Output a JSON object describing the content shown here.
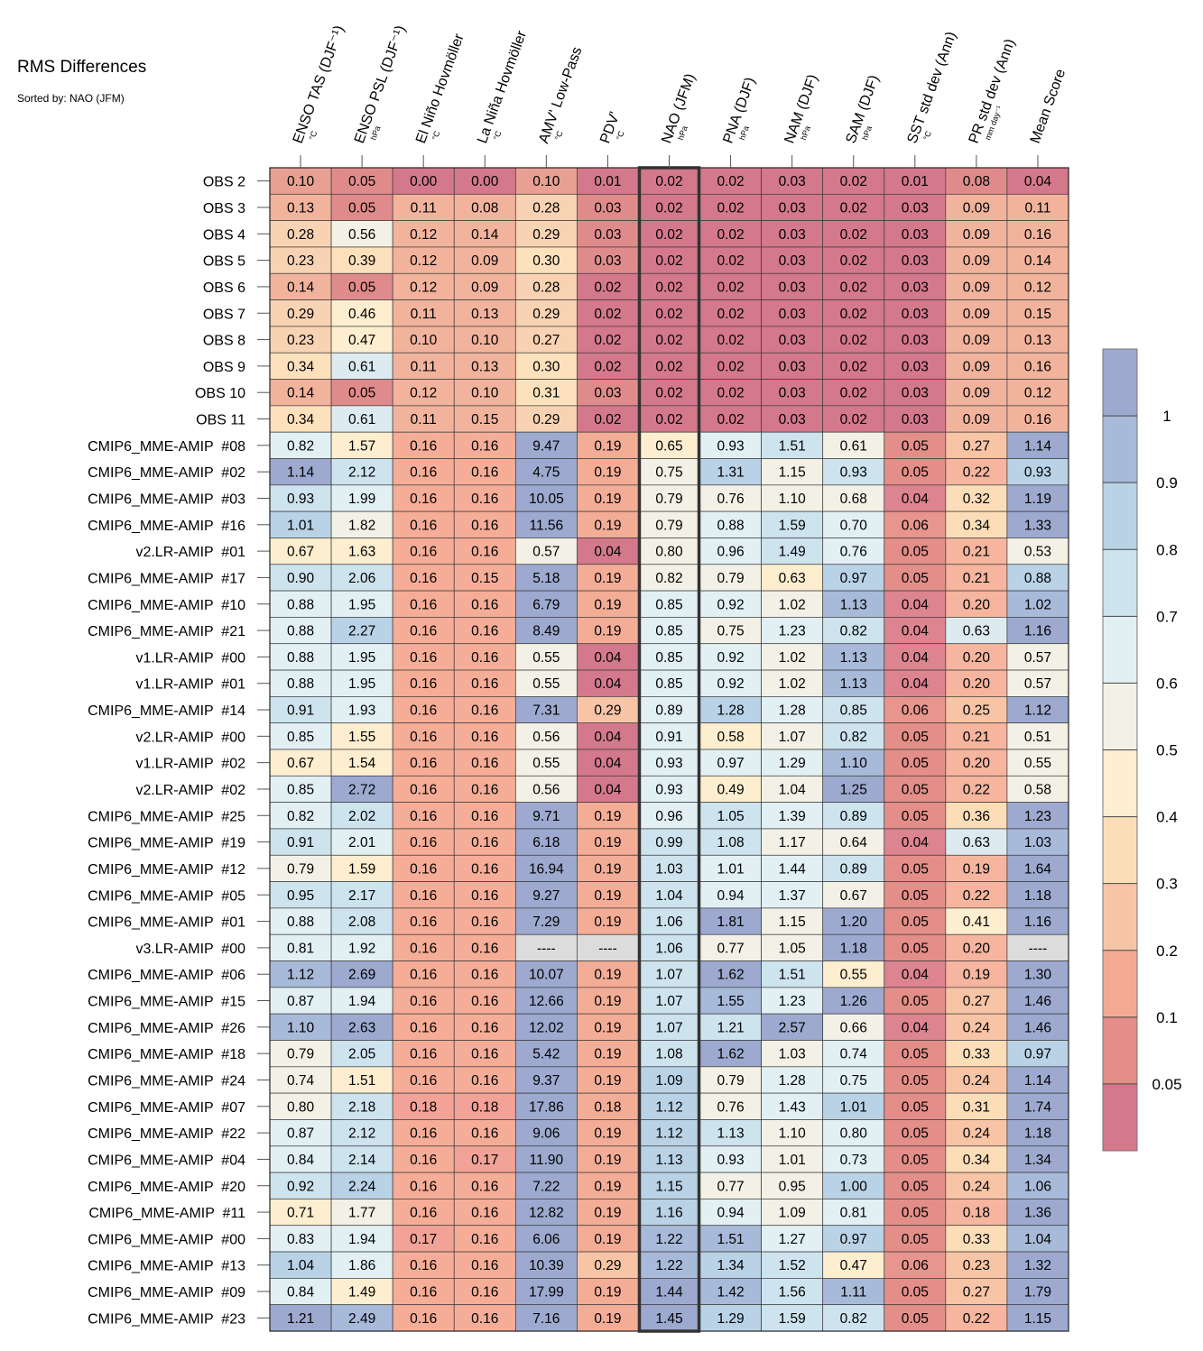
{
  "chart_data": {
    "type": "heatmap",
    "title": "RMS Differences",
    "subtitle": "Sorted by: NAO (JFM)",
    "columns": [
      {
        "label": "ENSO TAS (DJF⁻¹)",
        "unit": "°C"
      },
      {
        "label": "ENSO PSL (DJF⁻¹)",
        "unit": "hPa"
      },
      {
        "label": "El Niño Hovmöller",
        "unit": "°C"
      },
      {
        "label": "La Niña Hovmöller",
        "unit": "°C"
      },
      {
        "label": "AMV' Low-Pass",
        "unit": "°C"
      },
      {
        "label": "PDV'",
        "unit": "°C"
      },
      {
        "label": "NAO (JFM)",
        "unit": "hPa"
      },
      {
        "label": "PNA (DJF)",
        "unit": "hPa"
      },
      {
        "label": "NAM (DJF)",
        "unit": "hPa"
      },
      {
        "label": "SAM (DJF)",
        "unit": "hPa"
      },
      {
        "label": "SST std dev (Ann)",
        "unit": "°C"
      },
      {
        "label": "PR std dev (Ann)",
        "unit": "mm day⁻¹"
      },
      {
        "label": "Mean Score",
        "unit": ""
      }
    ],
    "highlight_column": "NAO (JFM)",
    "rows": [
      {
        "label": "OBS 2",
        "values": [
          "0.10",
          "0.05",
          "0.00",
          "0.00",
          "0.10",
          "0.01",
          "0.02",
          "0.02",
          "0.03",
          "0.02",
          "0.01",
          "0.08",
          "0.04"
        ]
      },
      {
        "label": "OBS 3",
        "values": [
          "0.13",
          "0.05",
          "0.11",
          "0.08",
          "0.28",
          "0.03",
          "0.02",
          "0.02",
          "0.03",
          "0.02",
          "0.03",
          "0.09",
          "0.11"
        ]
      },
      {
        "label": "OBS 4",
        "values": [
          "0.28",
          "0.56",
          "0.12",
          "0.14",
          "0.29",
          "0.03",
          "0.02",
          "0.02",
          "0.03",
          "0.02",
          "0.03",
          "0.09",
          "0.16"
        ]
      },
      {
        "label": "OBS 5",
        "values": [
          "0.23",
          "0.39",
          "0.12",
          "0.09",
          "0.30",
          "0.03",
          "0.02",
          "0.02",
          "0.03",
          "0.02",
          "0.03",
          "0.09",
          "0.14"
        ]
      },
      {
        "label": "OBS 6",
        "values": [
          "0.14",
          "0.05",
          "0.12",
          "0.09",
          "0.28",
          "0.02",
          "0.02",
          "0.02",
          "0.03",
          "0.02",
          "0.03",
          "0.09",
          "0.12"
        ]
      },
      {
        "label": "OBS 7",
        "values": [
          "0.29",
          "0.46",
          "0.11",
          "0.13",
          "0.29",
          "0.02",
          "0.02",
          "0.02",
          "0.03",
          "0.02",
          "0.03",
          "0.09",
          "0.15"
        ]
      },
      {
        "label": "OBS 8",
        "values": [
          "0.23",
          "0.47",
          "0.10",
          "0.10",
          "0.27",
          "0.02",
          "0.02",
          "0.02",
          "0.03",
          "0.02",
          "0.03",
          "0.09",
          "0.13"
        ]
      },
      {
        "label": "OBS 9",
        "values": [
          "0.34",
          "0.61",
          "0.11",
          "0.13",
          "0.30",
          "0.02",
          "0.02",
          "0.02",
          "0.03",
          "0.02",
          "0.03",
          "0.09",
          "0.16"
        ]
      },
      {
        "label": "OBS 10",
        "values": [
          "0.14",
          "0.05",
          "0.12",
          "0.10",
          "0.31",
          "0.03",
          "0.02",
          "0.02",
          "0.03",
          "0.02",
          "0.03",
          "0.09",
          "0.12"
        ]
      },
      {
        "label": "OBS 11",
        "values": [
          "0.34",
          "0.61",
          "0.11",
          "0.15",
          "0.29",
          "0.02",
          "0.02",
          "0.02",
          "0.03",
          "0.02",
          "0.03",
          "0.09",
          "0.16"
        ]
      },
      {
        "label": "CMIP6_MME-AMIP  #08",
        "values": [
          "0.82",
          "1.57",
          "0.16",
          "0.16",
          "9.47",
          "0.19",
          "0.65",
          "0.93",
          "1.51",
          "0.61",
          "0.05",
          "0.27",
          "1.14"
        ]
      },
      {
        "label": "CMIP6_MME-AMIP  #02",
        "values": [
          "1.14",
          "2.12",
          "0.16",
          "0.16",
          "4.75",
          "0.19",
          "0.75",
          "1.31",
          "1.15",
          "0.93",
          "0.05",
          "0.22",
          "0.93"
        ]
      },
      {
        "label": "CMIP6_MME-AMIP  #03",
        "values": [
          "0.93",
          "1.99",
          "0.16",
          "0.16",
          "10.05",
          "0.19",
          "0.79",
          "0.76",
          "1.10",
          "0.68",
          "0.04",
          "0.32",
          "1.19"
        ]
      },
      {
        "label": "CMIP6_MME-AMIP  #16",
        "values": [
          "1.01",
          "1.82",
          "0.16",
          "0.16",
          "11.56",
          "0.19",
          "0.79",
          "0.88",
          "1.59",
          "0.70",
          "0.06",
          "0.34",
          "1.33"
        ]
      },
      {
        "label": "v2.LR-AMIP  #01",
        "values": [
          "0.67",
          "1.63",
          "0.16",
          "0.16",
          "0.57",
          "0.04",
          "0.80",
          "0.96",
          "1.49",
          "0.76",
          "0.05",
          "0.21",
          "0.53"
        ]
      },
      {
        "label": "CMIP6_MME-AMIP  #17",
        "values": [
          "0.90",
          "2.06",
          "0.16",
          "0.15",
          "5.18",
          "0.19",
          "0.82",
          "0.79",
          "0.63",
          "0.97",
          "0.05",
          "0.21",
          "0.88"
        ]
      },
      {
        "label": "CMIP6_MME-AMIP  #10",
        "values": [
          "0.88",
          "1.95",
          "0.16",
          "0.16",
          "6.79",
          "0.19",
          "0.85",
          "0.92",
          "1.02",
          "1.13",
          "0.04",
          "0.20",
          "1.02"
        ]
      },
      {
        "label": "CMIP6_MME-AMIP  #21",
        "values": [
          "0.88",
          "2.27",
          "0.16",
          "0.16",
          "8.49",
          "0.19",
          "0.85",
          "0.75",
          "1.23",
          "0.82",
          "0.04",
          "0.63",
          "1.16"
        ]
      },
      {
        "label": "v1.LR-AMIP  #00",
        "values": [
          "0.88",
          "1.95",
          "0.16",
          "0.16",
          "0.55",
          "0.04",
          "0.85",
          "0.92",
          "1.02",
          "1.13",
          "0.04",
          "0.20",
          "0.57"
        ]
      },
      {
        "label": "v1.LR-AMIP  #01",
        "values": [
          "0.88",
          "1.95",
          "0.16",
          "0.16",
          "0.55",
          "0.04",
          "0.85",
          "0.92",
          "1.02",
          "1.13",
          "0.04",
          "0.20",
          "0.57"
        ]
      },
      {
        "label": "CMIP6_MME-AMIP  #14",
        "values": [
          "0.91",
          "1.93",
          "0.16",
          "0.16",
          "7.31",
          "0.29",
          "0.89",
          "1.28",
          "1.28",
          "0.85",
          "0.06",
          "0.25",
          "1.12"
        ]
      },
      {
        "label": "v2.LR-AMIP  #00",
        "values": [
          "0.85",
          "1.55",
          "0.16",
          "0.16",
          "0.56",
          "0.04",
          "0.91",
          "0.58",
          "1.07",
          "0.82",
          "0.05",
          "0.21",
          "0.51"
        ]
      },
      {
        "label": "v1.LR-AMIP  #02",
        "values": [
          "0.67",
          "1.54",
          "0.16",
          "0.16",
          "0.55",
          "0.04",
          "0.93",
          "0.97",
          "1.29",
          "1.10",
          "0.05",
          "0.20",
          "0.55"
        ]
      },
      {
        "label": "v2.LR-AMIP  #02",
        "values": [
          "0.85",
          "2.72",
          "0.16",
          "0.16",
          "0.56",
          "0.04",
          "0.93",
          "0.49",
          "1.04",
          "1.25",
          "0.05",
          "0.22",
          "0.58"
        ]
      },
      {
        "label": "CMIP6_MME-AMIP  #25",
        "values": [
          "0.82",
          "2.02",
          "0.16",
          "0.16",
          "9.71",
          "0.19",
          "0.96",
          "1.05",
          "1.39",
          "0.89",
          "0.05",
          "0.36",
          "1.23"
        ]
      },
      {
        "label": "CMIP6_MME-AMIP  #19",
        "values": [
          "0.91",
          "2.01",
          "0.16",
          "0.16",
          "6.18",
          "0.19",
          "0.99",
          "1.08",
          "1.17",
          "0.64",
          "0.04",
          "0.63",
          "1.03"
        ]
      },
      {
        "label": "CMIP6_MME-AMIP  #12",
        "values": [
          "0.79",
          "1.59",
          "0.16",
          "0.16",
          "16.94",
          "0.19",
          "1.03",
          "1.01",
          "1.44",
          "0.89",
          "0.05",
          "0.19",
          "1.64"
        ]
      },
      {
        "label": "CMIP6_MME-AMIP  #05",
        "values": [
          "0.95",
          "2.17",
          "0.16",
          "0.16",
          "9.27",
          "0.19",
          "1.04",
          "0.94",
          "1.37",
          "0.67",
          "0.05",
          "0.22",
          "1.18"
        ]
      },
      {
        "label": "CMIP6_MME-AMIP  #01",
        "values": [
          "0.88",
          "2.08",
          "0.16",
          "0.16",
          "7.29",
          "0.19",
          "1.06",
          "1.81",
          "1.15",
          "1.20",
          "0.05",
          "0.41",
          "1.16"
        ]
      },
      {
        "label": "v3.LR-AMIP  #00",
        "values": [
          "0.81",
          "1.92",
          "0.16",
          "0.16",
          "----",
          "----",
          "1.06",
          "0.77",
          "1.05",
          "1.18",
          "0.05",
          "0.20",
          "----"
        ]
      },
      {
        "label": "CMIP6_MME-AMIP  #06",
        "values": [
          "1.12",
          "2.69",
          "0.16",
          "0.16",
          "10.07",
          "0.19",
          "1.07",
          "1.62",
          "1.51",
          "0.55",
          "0.04",
          "0.19",
          "1.30"
        ]
      },
      {
        "label": "CMIP6_MME-AMIP  #15",
        "values": [
          "0.87",
          "1.94",
          "0.16",
          "0.16",
          "12.66",
          "0.19",
          "1.07",
          "1.55",
          "1.23",
          "1.26",
          "0.05",
          "0.27",
          "1.46"
        ]
      },
      {
        "label": "CMIP6_MME-AMIP  #26",
        "values": [
          "1.10",
          "2.63",
          "0.16",
          "0.16",
          "12.02",
          "0.19",
          "1.07",
          "1.21",
          "2.57",
          "0.66",
          "0.04",
          "0.24",
          "1.46"
        ]
      },
      {
        "label": "CMIP6_MME-AMIP  #18",
        "values": [
          "0.79",
          "2.05",
          "0.16",
          "0.16",
          "5.42",
          "0.19",
          "1.08",
          "1.62",
          "1.03",
          "0.74",
          "0.05",
          "0.33",
          "0.97"
        ]
      },
      {
        "label": "CMIP6_MME-AMIP  #24",
        "values": [
          "0.74",
          "1.51",
          "0.16",
          "0.16",
          "9.37",
          "0.19",
          "1.09",
          "0.79",
          "1.28",
          "0.75",
          "0.05",
          "0.24",
          "1.14"
        ]
      },
      {
        "label": "CMIP6_MME-AMIP  #07",
        "values": [
          "0.80",
          "2.18",
          "0.18",
          "0.18",
          "17.86",
          "0.18",
          "1.12",
          "0.76",
          "1.43",
          "1.01",
          "0.05",
          "0.31",
          "1.74"
        ]
      },
      {
        "label": "CMIP6_MME-AMIP  #22",
        "values": [
          "0.87",
          "2.12",
          "0.16",
          "0.16",
          "9.06",
          "0.19",
          "1.12",
          "1.13",
          "1.10",
          "0.80",
          "0.05",
          "0.24",
          "1.18"
        ]
      },
      {
        "label": "CMIP6_MME-AMIP  #04",
        "values": [
          "0.84",
          "2.14",
          "0.16",
          "0.17",
          "11.90",
          "0.19",
          "1.13",
          "0.93",
          "1.01",
          "0.73",
          "0.05",
          "0.34",
          "1.34"
        ]
      },
      {
        "label": "CMIP6_MME-AMIP  #20",
        "values": [
          "0.92",
          "2.24",
          "0.16",
          "0.16",
          "7.22",
          "0.19",
          "1.15",
          "0.77",
          "0.95",
          "1.00",
          "0.05",
          "0.24",
          "1.06"
        ]
      },
      {
        "label": "CMIP6_MME-AMIP  #11",
        "values": [
          "0.71",
          "1.77",
          "0.16",
          "0.16",
          "12.82",
          "0.19",
          "1.16",
          "0.94",
          "1.09",
          "0.81",
          "0.05",
          "0.18",
          "1.36"
        ]
      },
      {
        "label": "CMIP6_MME-AMIP  #00",
        "values": [
          "0.83",
          "1.94",
          "0.17",
          "0.16",
          "6.06",
          "0.19",
          "1.22",
          "1.51",
          "1.27",
          "0.97",
          "0.05",
          "0.33",
          "1.04"
        ]
      },
      {
        "label": "CMIP6_MME-AMIP  #13",
        "values": [
          "1.04",
          "1.86",
          "0.16",
          "0.16",
          "10.39",
          "0.29",
          "1.22",
          "1.34",
          "1.52",
          "0.47",
          "0.06",
          "0.23",
          "1.32"
        ]
      },
      {
        "label": "CMIP6_MME-AMIP  #09",
        "values": [
          "0.84",
          "1.49",
          "0.16",
          "0.16",
          "17.99",
          "0.19",
          "1.44",
          "1.42",
          "1.56",
          "1.11",
          "0.05",
          "0.27",
          "1.79"
        ]
      },
      {
        "label": "CMIP6_MME-AMIP  #23",
        "values": [
          "1.21",
          "2.49",
          "0.16",
          "0.16",
          "7.16",
          "0.19",
          "1.45",
          "1.29",
          "1.59",
          "0.82",
          "0.05",
          "0.22",
          "1.15"
        ]
      }
    ],
    "cell_colors": [
      [
        "#E8A092",
        "#E08B8B",
        "#D4788C",
        "#D4788C",
        "#E8A092",
        "#D4788C",
        "#D4788C",
        "#D4788C",
        "#D4788C",
        "#D4788C",
        "#D4788C",
        "#E08B8B",
        "#D4788C"
      ],
      [
        "#F2B39D",
        "#E08B8B",
        "#F2B39D",
        "#F2B39D",
        "#F7D3B3",
        "#E08B8B",
        "#D4788C",
        "#D4788C",
        "#D4788C",
        "#D4788C",
        "#D4788C",
        "#F2B39D",
        "#F2B39D"
      ],
      [
        "#F7D3B3",
        "#F3F1E6",
        "#F2B39D",
        "#F2B39D",
        "#F7D3B3",
        "#E08B8B",
        "#D4788C",
        "#D4788C",
        "#D4788C",
        "#D4788C",
        "#D4788C",
        "#F2B39D",
        "#F2B39D"
      ],
      [
        "#F7D3B3",
        "#FCE1BC",
        "#F2B39D",
        "#F2B39D",
        "#FCE1BC",
        "#E08B8B",
        "#D4788C",
        "#D4788C",
        "#D4788C",
        "#D4788C",
        "#D4788C",
        "#F2B39D",
        "#F2B39D"
      ],
      [
        "#F2B39D",
        "#E08B8B",
        "#F2B39D",
        "#F2B39D",
        "#F7D3B3",
        "#D4788C",
        "#D4788C",
        "#D4788C",
        "#D4788C",
        "#D4788C",
        "#D4788C",
        "#F2B39D",
        "#F2B39D"
      ],
      [
        "#F7D3B3",
        "#FCEECF",
        "#F2B39D",
        "#F2B39D",
        "#F7D3B3",
        "#D4788C",
        "#D4788C",
        "#D4788C",
        "#D4788C",
        "#D4788C",
        "#D4788C",
        "#F2B39D",
        "#F2B39D"
      ],
      [
        "#F7D3B3",
        "#FCEECF",
        "#F2B39D",
        "#F2B39D",
        "#F7D3B3",
        "#D4788C",
        "#D4788C",
        "#D4788C",
        "#D4788C",
        "#D4788C",
        "#D4788C",
        "#F2B39D",
        "#F2B39D"
      ],
      [
        "#FCE1BC",
        "#DDEBF1",
        "#F2B39D",
        "#F2B39D",
        "#FCE1BC",
        "#D4788C",
        "#D4788C",
        "#D4788C",
        "#D4788C",
        "#D4788C",
        "#D4788C",
        "#F2B39D",
        "#F2B39D"
      ],
      [
        "#F2B39D",
        "#E08B8B",
        "#F2B39D",
        "#F2B39D",
        "#FCE1BC",
        "#E08B8B",
        "#D4788C",
        "#D4788C",
        "#D4788C",
        "#D4788C",
        "#D4788C",
        "#F2B39D",
        "#F2B39D"
      ],
      [
        "#FCE1BC",
        "#DDEBF1",
        "#F2B39D",
        "#F2B39D",
        "#F7D3B3",
        "#D4788C",
        "#D4788C",
        "#D4788C",
        "#D4788C",
        "#D4788C",
        "#D4788C",
        "#F2B39D",
        "#F2B39D"
      ]
    ],
    "mid_colors": {
      "v1": "#F3F1E6",
      "low": "#D4788C",
      "pdv": "#E8A092",
      "sst": "#E08B8B",
      "pr": "#F7D3B3",
      "pr_high": "#DDEBF1",
      "missing": "#DCDCDC"
    },
    "colorbar": {
      "ticks": [
        "1",
        "0.9",
        "0.8",
        "0.7",
        "0.6",
        "0.5",
        "0.4",
        "0.3",
        "0.2",
        "0.1",
        "0.05"
      ],
      "colors": [
        "#9DA9CF",
        "#A8BAD9",
        "#B9D2E6",
        "#CDE3EE",
        "#E2F0F4",
        "#F3F1E6",
        "#FCEECF",
        "#FBDDB8",
        "#F8C4A6",
        "#F2AA93",
        "#E38E88",
        "#D4788C"
      ]
    }
  }
}
